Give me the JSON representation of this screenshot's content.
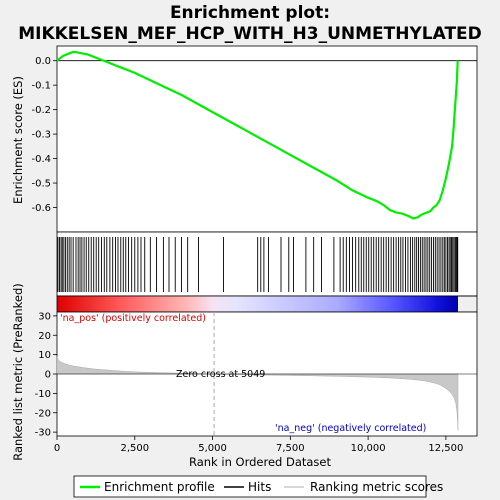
{
  "title_line1": "Enrichment plot:",
  "title_line2": "MIKKELSEN_MEF_HCP_WITH_H3_UNMETHYLATED",
  "chart_data": [
    {
      "type": "line",
      "panel": "enrichment",
      "ylabel": "Enrichment score (ES)",
      "ylim": [
        -0.7,
        0.06
      ],
      "yticks": [
        "0.0",
        "-0.1",
        "-0.2",
        "-0.3",
        "-0.4",
        "-0.5",
        "-0.6"
      ],
      "yticks_values": [
        0.0,
        -0.1,
        -0.2,
        -0.3,
        -0.4,
        -0.5,
        -0.6
      ],
      "xlim": [
        0,
        13500
      ],
      "series": [
        {
          "name": "Enrichment profile",
          "color": "#00ee00",
          "x": [
            0,
            100,
            200,
            300,
            400,
            500,
            600,
            800,
            1000,
            1200,
            1400,
            1600,
            1800,
            2000,
            2500,
            3000,
            3500,
            4000,
            4500,
            5000,
            5500,
            6000,
            6500,
            7000,
            7500,
            8000,
            8500,
            9000,
            9500,
            10000,
            10300,
            10500,
            10700,
            10900,
            11100,
            11300,
            11450,
            11600,
            11700,
            11800,
            11900,
            12000,
            12100,
            12200,
            12300,
            12400,
            12500,
            12600,
            12700,
            12750,
            12800,
            12850,
            12880
          ],
          "y": [
            0.0,
            0.01,
            0.02,
            0.025,
            0.03,
            0.035,
            0.035,
            0.03,
            0.025,
            0.015,
            0.005,
            -0.005,
            -0.015,
            -0.025,
            -0.05,
            -0.08,
            -0.11,
            -0.14,
            -0.175,
            -0.21,
            -0.245,
            -0.28,
            -0.315,
            -0.35,
            -0.385,
            -0.42,
            -0.455,
            -0.49,
            -0.53,
            -0.56,
            -0.575,
            -0.59,
            -0.61,
            -0.62,
            -0.625,
            -0.635,
            -0.645,
            -0.64,
            -0.63,
            -0.625,
            -0.62,
            -0.615,
            -0.6,
            -0.59,
            -0.57,
            -0.53,
            -0.48,
            -0.42,
            -0.35,
            -0.27,
            -0.18,
            -0.09,
            0.0
          ]
        }
      ]
    },
    {
      "type": "hits",
      "panel": "hits",
      "name": "Hits",
      "xlim": [
        0,
        13500
      ],
      "positions": [
        30,
        80,
        130,
        170,
        220,
        270,
        330,
        390,
        450,
        520,
        610,
        680,
        740,
        800,
        870,
        940,
        1020,
        1100,
        1180,
        1260,
        1340,
        1430,
        1520,
        1600,
        1700,
        1790,
        1880,
        1960,
        2050,
        2130,
        2210,
        2300,
        2400,
        2500,
        2600,
        2700,
        2820,
        3000,
        3200,
        3420,
        3600,
        3800,
        4000,
        4200,
        4550,
        5350,
        6450,
        6550,
        6650,
        6800,
        7200,
        7450,
        7600,
        8000,
        8250,
        8500,
        8900,
        9100,
        9200,
        9300,
        9400,
        9500,
        9600,
        9700,
        9780,
        9860,
        9940,
        10020,
        10100,
        10180,
        10260,
        10340,
        10420,
        10500,
        10580,
        10660,
        10740,
        10820,
        10900,
        10980,
        11050,
        11120,
        11200,
        11280,
        11360,
        11430,
        11500,
        11560,
        11620,
        11680,
        11740,
        11800,
        11860,
        11920,
        11980,
        12040,
        12100,
        12160,
        12220,
        12280,
        12340,
        12400,
        12450,
        12500,
        12550,
        12600,
        12640,
        12680,
        12720,
        12760,
        12800,
        12830,
        12860,
        12880
      ]
    },
    {
      "type": "area",
      "panel": "ranked_metric",
      "name": "Ranking metric scores",
      "ylabel": "Ranked list metric (PreRanked)",
      "xlabel": "Rank in Ordered Dataset",
      "ylim": [
        -32,
        32
      ],
      "yticks": [
        "30",
        "20",
        "10",
        "0",
        "-10",
        "-20",
        "-30"
      ],
      "yticks_values": [
        30,
        20,
        10,
        0,
        -10,
        -20,
        -30
      ],
      "xlim": [
        0,
        13500
      ],
      "xticks": [
        "0",
        "2,500",
        "5,000",
        "7,500",
        "10,000",
        "12,500"
      ],
      "xticks_values": [
        0,
        2500,
        5000,
        7500,
        10000,
        12500
      ],
      "x": [
        0,
        50,
        150,
        300,
        500,
        800,
        1200,
        1800,
        2500,
        3500,
        4500,
        5049,
        6000,
        7000,
        8000,
        9000,
        10000,
        10800,
        11400,
        11800,
        12100,
        12300,
        12500,
        12650,
        12750,
        12820,
        12860,
        12890
      ],
      "values": [
        9,
        7,
        6,
        5,
        4.2,
        3.4,
        2.6,
        1.8,
        1.1,
        0.6,
        0.2,
        0,
        -0.3,
        -0.6,
        -0.9,
        -1.2,
        -1.6,
        -2.1,
        -2.8,
        -3.5,
        -4.5,
        -5.5,
        -7.5,
        -9.5,
        -12,
        -15,
        -20,
        -29
      ],
      "zero_cross": 5049,
      "pos_label": "'na_pos' (positively correlated)",
      "neg_label": "'na_neg' (negatively correlated)",
      "zero_label": "Zero cross at 5049"
    }
  ],
  "colors": {
    "profile": "#00ee00",
    "hits": "#000000",
    "metric_fill": "#c8c8c8",
    "pos_text": "#dd0000",
    "neg_text": "#0000cc",
    "zero_line": "#aaaaaa"
  },
  "legend": [
    {
      "label": "Enrichment profile",
      "kind": "line",
      "color": "#00ee00"
    },
    {
      "label": "Hits",
      "kind": "line",
      "color": "#000000"
    },
    {
      "label": "Ranking metric scores",
      "kind": "line",
      "color": "#c8c8c8"
    }
  ]
}
